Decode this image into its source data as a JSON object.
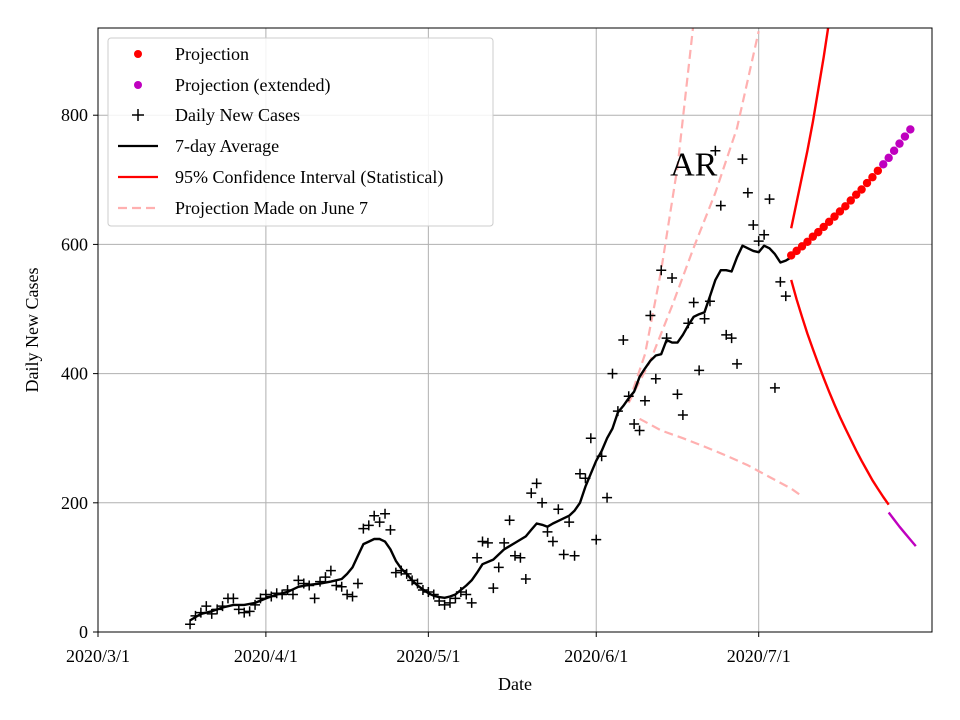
{
  "chart_data": {
    "type": "line",
    "title": "",
    "xlabel": "Date",
    "ylabel": "Daily New Cases",
    "grid": true,
    "legend_position": "top-left",
    "x_unit": "days since 2020/3/1",
    "xlim": [
      0,
      154
    ],
    "ylim": [
      0,
      935
    ],
    "x_ticks": [
      {
        "label": "2020/3/1",
        "day": 0
      },
      {
        "label": "2020/4/1",
        "day": 31
      },
      {
        "label": "2020/5/1",
        "day": 61
      },
      {
        "label": "2020/6/1",
        "day": 92
      },
      {
        "label": "2020/7/1",
        "day": 122
      }
    ],
    "y_ticks": [
      0,
      200,
      400,
      600,
      800
    ],
    "annotation": {
      "text": "AR",
      "day": 110,
      "value": 725
    },
    "legend": [
      {
        "label": "Projection",
        "color": "#ff0000",
        "marker": "dot"
      },
      {
        "label": "Projection (extended)",
        "color": "#bf00bf",
        "marker": "dot"
      },
      {
        "label": "Daily New Cases",
        "color": "#000000",
        "marker": "plus"
      },
      {
        "label": "7-day Average",
        "color": "#000000",
        "marker": "line"
      },
      {
        "label": "95% Confidence Interval (Statistical)",
        "color": "#ff0000",
        "marker": "line"
      },
      {
        "label": "Projection Made on June 7",
        "color": "#ffb0b0",
        "marker": "dashed"
      }
    ],
    "series": [
      {
        "name": "Daily New Cases",
        "style": "plus",
        "color": "#000000",
        "points": [
          [
            17,
            12
          ],
          [
            18,
            25
          ],
          [
            19,
            30
          ],
          [
            20,
            40
          ],
          [
            21,
            28
          ],
          [
            22,
            35
          ],
          [
            23,
            40
          ],
          [
            24,
            52
          ],
          [
            25,
            52
          ],
          [
            26,
            35
          ],
          [
            27,
            30
          ],
          [
            28,
            32
          ],
          [
            29,
            42
          ],
          [
            30,
            52
          ],
          [
            31,
            58
          ],
          [
            32,
            55
          ],
          [
            33,
            60
          ],
          [
            34,
            58
          ],
          [
            35,
            65
          ],
          [
            36,
            58
          ],
          [
            37,
            80
          ],
          [
            38,
            75
          ],
          [
            39,
            72
          ],
          [
            40,
            52
          ],
          [
            41,
            78
          ],
          [
            42,
            85
          ],
          [
            43,
            95
          ],
          [
            44,
            72
          ],
          [
            45,
            70
          ],
          [
            46,
            58
          ],
          [
            47,
            55
          ],
          [
            48,
            75
          ],
          [
            49,
            160
          ],
          [
            50,
            165
          ],
          [
            51,
            180
          ],
          [
            52,
            170
          ],
          [
            53,
            183
          ],
          [
            54,
            158
          ],
          [
            55,
            92
          ],
          [
            56,
            95
          ],
          [
            57,
            90
          ],
          [
            58,
            80
          ],
          [
            59,
            75
          ],
          [
            60,
            65
          ],
          [
            61,
            62
          ],
          [
            62,
            58
          ],
          [
            63,
            48
          ],
          [
            64,
            42
          ],
          [
            65,
            45
          ],
          [
            66,
            52
          ],
          [
            67,
            62
          ],
          [
            68,
            58
          ],
          [
            69,
            45
          ],
          [
            70,
            115
          ],
          [
            71,
            140
          ],
          [
            72,
            138
          ],
          [
            73,
            68
          ],
          [
            74,
            100
          ],
          [
            75,
            138
          ],
          [
            76,
            173
          ],
          [
            77,
            118
          ],
          [
            78,
            115
          ],
          [
            79,
            82
          ],
          [
            80,
            215
          ],
          [
            81,
            230
          ],
          [
            82,
            200
          ],
          [
            83,
            155
          ],
          [
            84,
            140
          ],
          [
            85,
            190
          ],
          [
            86,
            120
          ],
          [
            87,
            170
          ],
          [
            88,
            118
          ],
          [
            89,
            245
          ],
          [
            90,
            238
          ],
          [
            91,
            300
          ],
          [
            92,
            143
          ],
          [
            93,
            272
          ],
          [
            94,
            208
          ],
          [
            95,
            400
          ],
          [
            96,
            342
          ],
          [
            97,
            452
          ],
          [
            98,
            365
          ],
          [
            99,
            322
          ],
          [
            100,
            312
          ],
          [
            101,
            358
          ],
          [
            102,
            490
          ],
          [
            103,
            392
          ],
          [
            104,
            560
          ],
          [
            105,
            455
          ],
          [
            106,
            548
          ],
          [
            107,
            368
          ],
          [
            108,
            336
          ],
          [
            109,
            478
          ],
          [
            110,
            510
          ],
          [
            111,
            405
          ],
          [
            112,
            485
          ],
          [
            113,
            512
          ],
          [
            114,
            745
          ],
          [
            115,
            660
          ],
          [
            116,
            460
          ],
          [
            117,
            455
          ],
          [
            118,
            415
          ],
          [
            119,
            732
          ],
          [
            120,
            680
          ],
          [
            121,
            630
          ],
          [
            122,
            605
          ],
          [
            123,
            615
          ],
          [
            124,
            670
          ],
          [
            125,
            378
          ],
          [
            126,
            542
          ],
          [
            127,
            520
          ]
        ]
      },
      {
        "name": "7-day Average",
        "style": "line",
        "color": "#000000",
        "points": [
          [
            17,
            18
          ],
          [
            19,
            28
          ],
          [
            21,
            32
          ],
          [
            23,
            38
          ],
          [
            25,
            42
          ],
          [
            27,
            42
          ],
          [
            29,
            45
          ],
          [
            31,
            52
          ],
          [
            33,
            58
          ],
          [
            35,
            62
          ],
          [
            37,
            70
          ],
          [
            39,
            73
          ],
          [
            41,
            75
          ],
          [
            43,
            78
          ],
          [
            45,
            82
          ],
          [
            46,
            90
          ],
          [
            47,
            100
          ],
          [
            48,
            118
          ],
          [
            49,
            136
          ],
          [
            50,
            140
          ],
          [
            51,
            144
          ],
          [
            52,
            144
          ],
          [
            53,
            140
          ],
          [
            54,
            128
          ],
          [
            55,
            110
          ],
          [
            56,
            98
          ],
          [
            57,
            90
          ],
          [
            58,
            80
          ],
          [
            59,
            72
          ],
          [
            60,
            66
          ],
          [
            61,
            60
          ],
          [
            62,
            56
          ],
          [
            63,
            54
          ],
          [
            64,
            53
          ],
          [
            65,
            55
          ],
          [
            66,
            58
          ],
          [
            67,
            65
          ],
          [
            68,
            72
          ],
          [
            69,
            80
          ],
          [
            70,
            92
          ],
          [
            71,
            105
          ],
          [
            73,
            112
          ],
          [
            75,
            128
          ],
          [
            77,
            138
          ],
          [
            79,
            148
          ],
          [
            80,
            158
          ],
          [
            81,
            168
          ],
          [
            82,
            166
          ],
          [
            83,
            163
          ],
          [
            84,
            168
          ],
          [
            85,
            172
          ],
          [
            86,
            176
          ],
          [
            87,
            180
          ],
          [
            88,
            188
          ],
          [
            89,
            200
          ],
          [
            90,
            225
          ],
          [
            91,
            245
          ],
          [
            92,
            265
          ],
          [
            93,
            280
          ],
          [
            94,
            300
          ],
          [
            95,
            315
          ],
          [
            96,
            340
          ],
          [
            97,
            350
          ],
          [
            98,
            362
          ],
          [
            99,
            372
          ],
          [
            100,
            395
          ],
          [
            101,
            408
          ],
          [
            102,
            420
          ],
          [
            103,
            428
          ],
          [
            104,
            430
          ],
          [
            105,
            452
          ],
          [
            106,
            448
          ],
          [
            107,
            448
          ],
          [
            108,
            460
          ],
          [
            109,
            475
          ],
          [
            110,
            488
          ],
          [
            111,
            492
          ],
          [
            112,
            495
          ],
          [
            113,
            520
          ],
          [
            114,
            545
          ],
          [
            115,
            560
          ],
          [
            116,
            560
          ],
          [
            117,
            558
          ],
          [
            118,
            580
          ],
          [
            119,
            598
          ],
          [
            120,
            594
          ],
          [
            121,
            590
          ],
          [
            122,
            588
          ],
          [
            123,
            598
          ],
          [
            124,
            594
          ],
          [
            125,
            585
          ],
          [
            126,
            572
          ],
          [
            127,
            575
          ],
          [
            128,
            580
          ]
        ]
      },
      {
        "name": "Projection",
        "style": "dot",
        "color": "#ff0000",
        "points": [
          [
            128,
            583
          ],
          [
            129,
            590
          ],
          [
            130,
            597
          ],
          [
            131,
            604
          ],
          [
            132,
            612
          ],
          [
            133,
            619
          ],
          [
            134,
            627
          ],
          [
            135,
            635
          ],
          [
            136,
            643
          ],
          [
            137,
            651
          ],
          [
            138,
            659
          ],
          [
            139,
            668
          ],
          [
            140,
            677
          ],
          [
            141,
            685
          ],
          [
            142,
            695
          ],
          [
            143,
            704
          ],
          [
            144,
            714
          ]
        ]
      },
      {
        "name": "Projection (extended)",
        "style": "dot",
        "color": "#bf00bf",
        "points": [
          [
            145,
            724
          ],
          [
            146,
            734
          ],
          [
            147,
            745
          ],
          [
            148,
            756
          ],
          [
            149,
            767
          ],
          [
            150,
            778
          ]
        ]
      },
      {
        "name": "95% Confidence Interval (Statistical) upper",
        "style": "line",
        "color": "#ff0000",
        "points": [
          [
            128,
            625
          ],
          [
            129,
            665
          ],
          [
            130,
            705
          ],
          [
            131,
            745
          ],
          [
            132,
            790
          ],
          [
            133,
            840
          ],
          [
            134,
            890
          ],
          [
            135,
            945
          ]
        ]
      },
      {
        "name": "95% Confidence Interval (Statistical) lower",
        "style": "line",
        "color": "#ff0000",
        "points": [
          [
            128,
            545
          ],
          [
            129,
            515
          ],
          [
            130,
            488
          ],
          [
            131,
            462
          ],
          [
            132,
            438
          ],
          [
            133,
            415
          ],
          [
            134,
            393
          ],
          [
            135,
            372
          ],
          [
            136,
            352
          ],
          [
            137,
            333
          ],
          [
            138,
            315
          ],
          [
            139,
            298
          ],
          [
            140,
            281
          ],
          [
            141,
            265
          ],
          [
            142,
            250
          ],
          [
            143,
            235
          ],
          [
            144,
            222
          ],
          [
            145,
            209
          ],
          [
            146,
            197
          ]
        ]
      },
      {
        "name": "Confidence Interval (extended)",
        "style": "line",
        "color": "#bf00bf",
        "points": [
          [
            146,
            185
          ],
          [
            147,
            174
          ],
          [
            148,
            163
          ],
          [
            149,
            153
          ],
          [
            150,
            143
          ],
          [
            151,
            133
          ]
        ]
      },
      {
        "name": "Projection Made on June 7 (upper)",
        "style": "dashed",
        "color": "#ffb0b0",
        "points": [
          [
            98,
            355
          ],
          [
            101,
            430
          ],
          [
            104,
            560
          ],
          [
            107,
            720
          ],
          [
            110,
            945
          ]
        ]
      },
      {
        "name": "Projection Made on June 7 (middle)",
        "style": "dashed",
        "color": "#ffb0b0",
        "points": [
          [
            98,
            355
          ],
          [
            102,
            420
          ],
          [
            106,
            505
          ],
          [
            110,
            595
          ],
          [
            114,
            680
          ],
          [
            118,
            780
          ],
          [
            122,
            930
          ]
        ]
      },
      {
        "name": "Projection Made on June 7 (lower)",
        "style": "dashed",
        "color": "#ffb0b0",
        "points": [
          [
            100,
            330
          ],
          [
            104,
            312
          ],
          [
            108,
            300
          ],
          [
            112,
            287
          ],
          [
            116,
            273
          ],
          [
            120,
            258
          ],
          [
            124,
            240
          ],
          [
            128,
            222
          ],
          [
            130,
            210
          ]
        ]
      }
    ]
  }
}
